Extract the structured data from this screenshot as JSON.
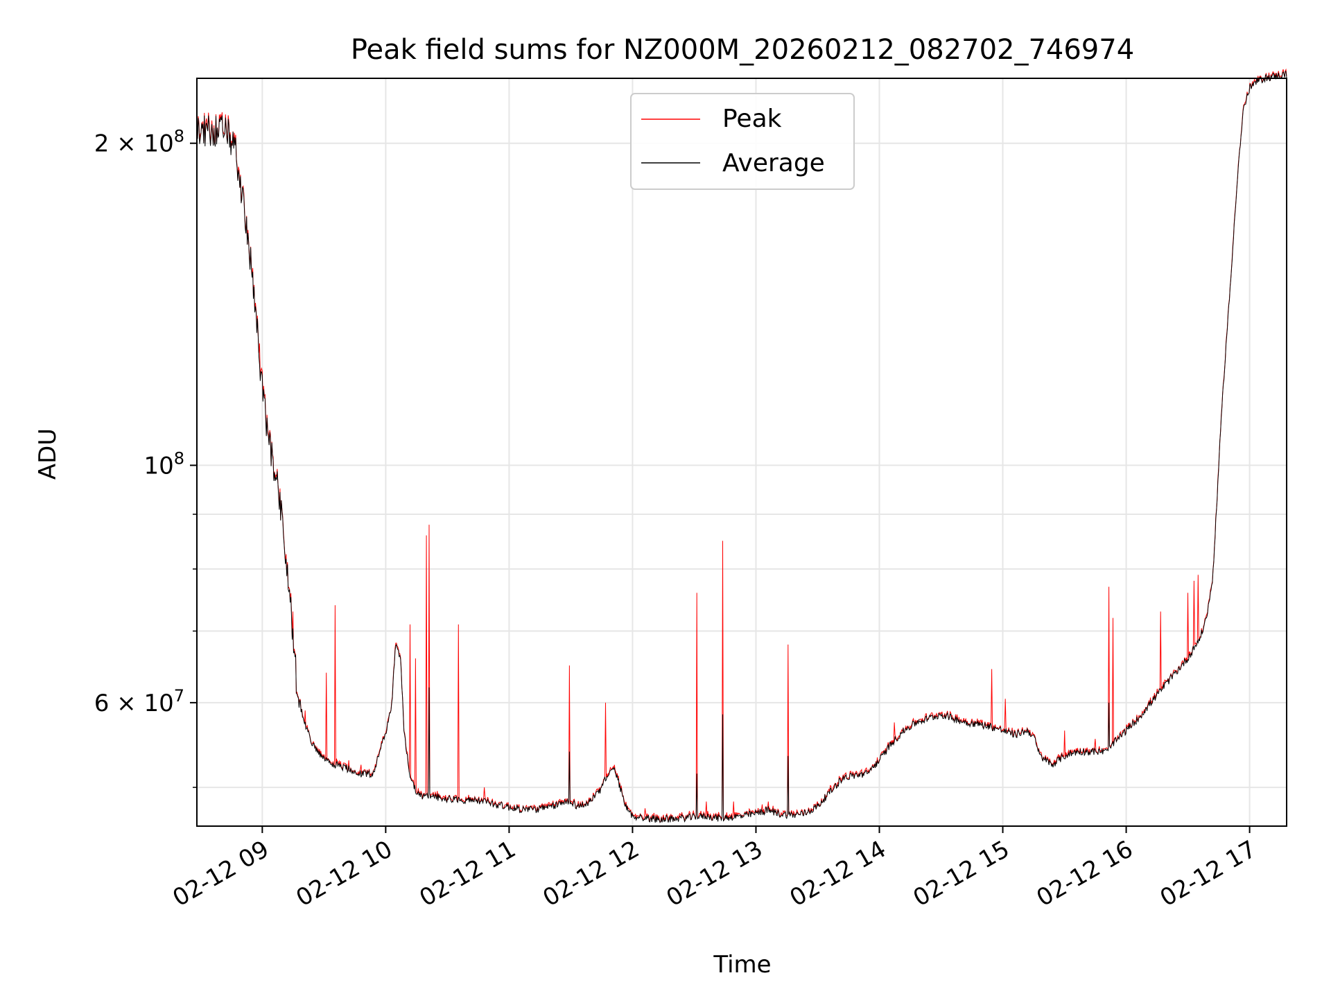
{
  "chart_data": {
    "type": "line",
    "title": "Peak field sums for NZ000M_20260212_082702_746974",
    "xlabel": "Time",
    "ylabel": "ADU",
    "x_unit": "hours",
    "xlim": [
      8.47,
      17.3
    ],
    "ylim": [
      46000000,
      230000000
    ],
    "y_scale": "log",
    "grid": true,
    "legend_position": "upper center",
    "x_ticks": [
      {
        "value": 9,
        "label": "02-12 09"
      },
      {
        "value": 10,
        "label": "02-12 10"
      },
      {
        "value": 11,
        "label": "02-12 11"
      },
      {
        "value": 12,
        "label": "02-12 12"
      },
      {
        "value": 13,
        "label": "02-12 13"
      },
      {
        "value": 14,
        "label": "02-12 14"
      },
      {
        "value": 15,
        "label": "02-12 15"
      },
      {
        "value": 16,
        "label": "02-12 16"
      },
      {
        "value": 17,
        "label": "02-12 17"
      }
    ],
    "y_major_ticks": [
      {
        "value": 60000000,
        "mantissa": "6",
        "exponent": "7"
      },
      {
        "value": 100000000,
        "mantissa": "",
        "exponent": "8"
      },
      {
        "value": 200000000,
        "mantissa": "2",
        "exponent": "8"
      }
    ],
    "y_minor_ticks": [
      50000000,
      70000000,
      80000000,
      90000000
    ],
    "series": [
      {
        "name": "Peak",
        "color": "#ff0000"
      },
      {
        "name": "Average",
        "color": "#000000"
      }
    ],
    "baseline": {
      "x": [
        8.47,
        8.55,
        8.65,
        8.72,
        8.78,
        8.83,
        8.88,
        8.93,
        8.98,
        9.03,
        9.08,
        9.13,
        9.18,
        9.23,
        9.28,
        9.33,
        9.4,
        9.5,
        9.6,
        9.7,
        9.8,
        9.9,
        9.95,
        10.0,
        10.05,
        10.08,
        10.12,
        10.15,
        10.2,
        10.25,
        10.3,
        10.35,
        10.4,
        10.5,
        10.6,
        10.7,
        10.8,
        10.9,
        11.0,
        11.1,
        11.2,
        11.3,
        11.4,
        11.5,
        11.55,
        11.62,
        11.7,
        11.75,
        11.8,
        11.85,
        11.9,
        11.95,
        12.0,
        12.1,
        12.2,
        12.3,
        12.4,
        12.5,
        12.6,
        12.7,
        12.8,
        12.9,
        13.0,
        13.1,
        13.2,
        13.3,
        13.4,
        13.5,
        13.6,
        13.7,
        13.8,
        13.9,
        14.0,
        14.1,
        14.2,
        14.3,
        14.4,
        14.5,
        14.6,
        14.7,
        14.8,
        14.9,
        15.0,
        15.1,
        15.2,
        15.25,
        15.3,
        15.4,
        15.5,
        15.6,
        15.7,
        15.8,
        15.85,
        15.9,
        16.0,
        16.1,
        16.2,
        16.3,
        16.4,
        16.5,
        16.6,
        16.65,
        16.7,
        16.73,
        16.76,
        16.8,
        16.85,
        16.9,
        16.95,
        17.0,
        17.05,
        17.12,
        17.2,
        17.3
      ],
      "y": [
        206000000,
        205000000,
        206000000,
        204000000,
        198000000,
        180000000,
        165000000,
        145000000,
        125000000,
        110000000,
        101000000,
        96000000,
        84000000,
        74000000,
        62000000,
        58000000,
        55000000,
        53000000,
        52500000,
        52000000,
        51500000,
        51500000,
        54000000,
        56000000,
        60000000,
        68000000,
        66000000,
        56000000,
        51000000,
        49500000,
        49000000,
        49000000,
        49000000,
        48800000,
        48700000,
        48600000,
        48500000,
        48200000,
        47900000,
        47700000,
        47700000,
        47800000,
        48200000,
        48600000,
        48000000,
        48200000,
        49000000,
        50000000,
        51500000,
        52000000,
        50000000,
        47800000,
        47000000,
        46800000,
        46700000,
        46700000,
        46800000,
        46900000,
        47000000,
        46800000,
        46900000,
        47000000,
        47300000,
        47600000,
        47200000,
        47100000,
        47300000,
        48000000,
        49500000,
        51000000,
        51300000,
        51500000,
        53000000,
        55000000,
        56500000,
        57500000,
        58000000,
        58500000,
        58000000,
        57500000,
        57300000,
        57000000,
        56500000,
        56000000,
        56500000,
        55800000,
        53500000,
        52500000,
        53500000,
        54000000,
        54000000,
        54000000,
        54000000,
        55000000,
        56500000,
        58000000,
        60000000,
        62000000,
        64000000,
        66000000,
        69000000,
        72000000,
        78000000,
        90000000,
        105000000,
        125000000,
        150000000,
        185000000,
        215000000,
        225000000,
        228000000,
        230000000,
        231000000,
        232000000
      ]
    },
    "peak_spikes": [
      {
        "x": 8.98,
        "y": 130000000
      },
      {
        "x": 9.25,
        "y": 73000000
      },
      {
        "x": 9.35,
        "y": 59000000
      },
      {
        "x": 9.52,
        "y": 64000000
      },
      {
        "x": 9.59,
        "y": 74000000
      },
      {
        "x": 9.7,
        "y": 53000000
      },
      {
        "x": 9.8,
        "y": 52500000
      },
      {
        "x": 10.02,
        "y": 58000000
      },
      {
        "x": 10.2,
        "y": 71000000
      },
      {
        "x": 10.24,
        "y": 66000000
      },
      {
        "x": 10.33,
        "y": 86000000
      },
      {
        "x": 10.35,
        "y": 88000000
      },
      {
        "x": 10.59,
        "y": 71000000
      },
      {
        "x": 10.8,
        "y": 50000000
      },
      {
        "x": 11.49,
        "y": 65000000
      },
      {
        "x": 11.78,
        "y": 60000000
      },
      {
        "x": 12.1,
        "y": 47800000
      },
      {
        "x": 12.52,
        "y": 76000000
      },
      {
        "x": 12.6,
        "y": 48500000
      },
      {
        "x": 12.73,
        "y": 85000000
      },
      {
        "x": 12.82,
        "y": 48500000
      },
      {
        "x": 13.05,
        "y": 48200000
      },
      {
        "x": 13.1,
        "y": 48500000
      },
      {
        "x": 13.26,
        "y": 68000000
      },
      {
        "x": 14.12,
        "y": 57500000
      },
      {
        "x": 14.82,
        "y": 57800000
      },
      {
        "x": 14.91,
        "y": 64500000
      },
      {
        "x": 15.02,
        "y": 60500000
      },
      {
        "x": 15.5,
        "y": 56500000
      },
      {
        "x": 15.75,
        "y": 55500000
      },
      {
        "x": 15.86,
        "y": 77000000
      },
      {
        "x": 15.89,
        "y": 72000000
      },
      {
        "x": 16.28,
        "y": 73000000
      },
      {
        "x": 16.5,
        "y": 76000000
      },
      {
        "x": 16.55,
        "y": 78000000
      },
      {
        "x": 16.58,
        "y": 79000000
      }
    ],
    "avg_spikes": [
      {
        "x": 10.35,
        "y": 62000000
      },
      {
        "x": 11.49,
        "y": 54000000
      },
      {
        "x": 12.52,
        "y": 51500000
      },
      {
        "x": 12.73,
        "y": 58500000
      },
      {
        "x": 13.26,
        "y": 53500000
      },
      {
        "x": 15.86,
        "y": 60000000
      }
    ]
  }
}
